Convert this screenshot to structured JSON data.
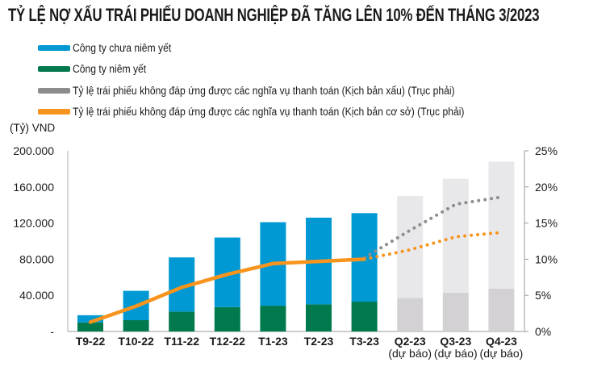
{
  "chart_data": {
    "type": "bar",
    "title": "TỶ LỆ  NỢ XẤU TRÁI PHIẾU DOANH NGHIỆP ĐÃ TĂNG LÊN 10% ĐẾN THÁNG 3/2023",
    "ylabel": "(Tỷ) VND",
    "ylim": [
      0,
      200000
    ],
    "y2lim": [
      0,
      25
    ],
    "yticks": [
      "-",
      "40.000",
      "80.000",
      "120.000",
      "160.000",
      "200.000"
    ],
    "y2ticks": [
      "0%",
      "5%",
      "10%",
      "15%",
      "20%",
      "25%"
    ],
    "categories": [
      [
        "T9-22"
      ],
      [
        "T10-22"
      ],
      [
        "T11-22"
      ],
      [
        "T12-22"
      ],
      [
        "T1-23"
      ],
      [
        "T2-23"
      ],
      [
        "T3-23"
      ],
      [
        "Q2-23",
        "(dự báo)"
      ],
      [
        "Q3-23",
        "(dự báo)"
      ],
      [
        "Q4-23",
        "(dự báo)"
      ]
    ],
    "series": [
      {
        "name": "Công ty chưa niêm yết",
        "kind": "bar-stack",
        "color": "#0099d4",
        "forecast_color": "#e8e8ea",
        "values": [
          8000,
          32500,
          60000,
          77000,
          92500,
          96000,
          98000,
          113000,
          126000,
          140500
        ]
      },
      {
        "name": "Công ty niêm yết",
        "kind": "bar-stack",
        "color": "#007a4d",
        "forecast_color": "#d3d1d3",
        "values": [
          10000,
          12500,
          22000,
          27000,
          28500,
          30000,
          33000,
          37000,
          43000,
          47500
        ]
      },
      {
        "name": "Tỷ lệ trái phiếu không đáp ứng được các nghĩa vụ thanh toán (Kịch bản xấu) (Trục phải)",
        "kind": "line-dotted",
        "axis": "right",
        "color": "#8c8c8c",
        "values": [
          null,
          null,
          null,
          null,
          null,
          null,
          10.2,
          14.0,
          17.6,
          18.6
        ]
      },
      {
        "name": "Tỷ lệ trái phiếu không đáp ứng được các nghĩa vụ thanh toán (Kịch bản cơ sở) (Trục phải)",
        "kind": "line",
        "axis": "right",
        "color": "#f7941d",
        "values": [
          1.3,
          3.5,
          6.1,
          7.9,
          9.4,
          9.7,
          10.0,
          11.3,
          13.1,
          13.7
        ],
        "forecast_from_index": 6
      }
    ],
    "legend_position": "top-left",
    "grid": false
  }
}
